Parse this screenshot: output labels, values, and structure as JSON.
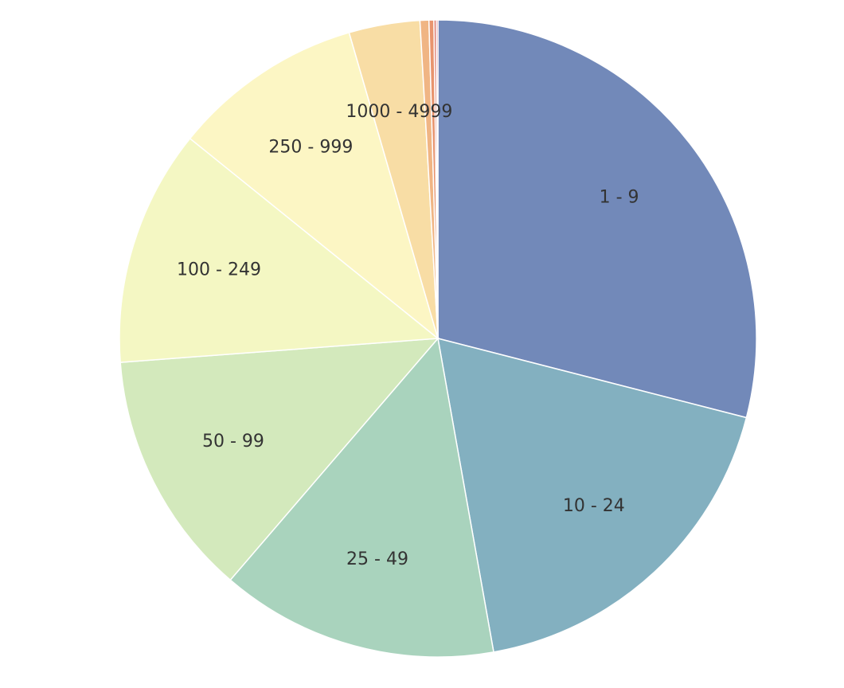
{
  "chart_data": {
    "type": "pie",
    "categories": [
      "1 - 9",
      "10 - 24",
      "25 - 49",
      "50 - 99",
      "100 - 249",
      "250 - 999",
      "1000 - 4999",
      null,
      null,
      null,
      null
    ],
    "values": [
      29.0,
      18.2,
      14.1,
      12.5,
      12.0,
      9.7,
      3.6,
      0.45,
      0.25,
      0.12,
      0.08
    ],
    "colors": [
      "#7289b9",
      "#83b0c0",
      "#a9d3bd",
      "#d3e9bc",
      "#f4f7c3",
      "#fcf6c4",
      "#f8dda5",
      "#f0b584",
      "#e8946e",
      "#d96b5d",
      "#c2474f"
    ]
  }
}
